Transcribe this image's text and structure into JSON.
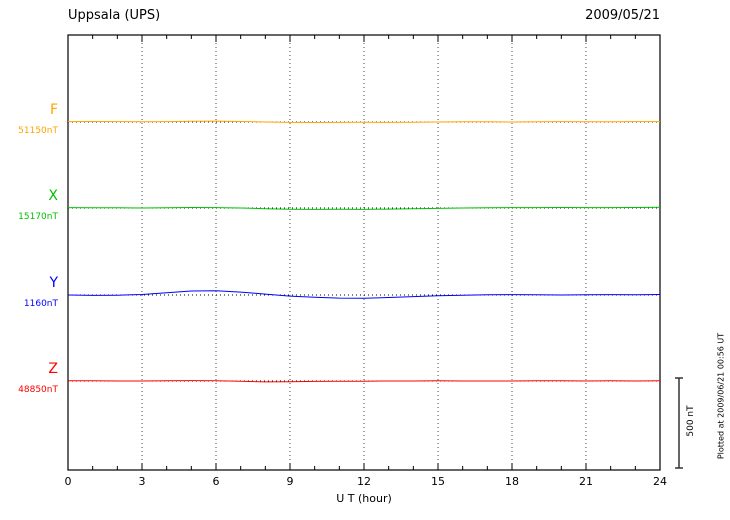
{
  "header": {
    "station": "Uppsala (UPS)",
    "date": "2009/05/21"
  },
  "axis": {
    "xlabel": "U T (hour)",
    "ticks": [
      "0",
      "3",
      "6",
      "9",
      "12",
      "15",
      "18",
      "21",
      "24"
    ]
  },
  "scale_bar": {
    "label": "500 nT",
    "nt": 500
  },
  "footer_note": "Plotted at 2009/06/21 00:56 UT",
  "channels": [
    {
      "label": "F",
      "value_label": "51150nT",
      "color": "#FFA500"
    },
    {
      "label": "X",
      "value_label": "15170nT",
      "color": "#00C000"
    },
    {
      "label": "Y",
      "value_label": "1160nT",
      "color": "#0000FF"
    },
    {
      "label": "Z",
      "value_label": "48850nT",
      "color": "#FF0000"
    }
  ],
  "chart_data": {
    "type": "line",
    "title": "Uppsala (UPS) magnetogram 2009/05/21",
    "xlabel": "U T (hour)",
    "xlim": [
      0,
      24
    ],
    "x_major_ticks": [
      0,
      3,
      6,
      9,
      12,
      15,
      18,
      21,
      24
    ],
    "x_hours": [
      0,
      1,
      2,
      3,
      4,
      5,
      6,
      7,
      8,
      9,
      10,
      11,
      12,
      13,
      14,
      15,
      16,
      17,
      18,
      19,
      20,
      21,
      22,
      23,
      24
    ],
    "grid": "dotted vertical gridlines every 3 h; dotted horizontal baseline per channel",
    "scale_bar_nt": 500,
    "series": [
      {
        "name": "F",
        "baseline": 51150,
        "color": "#FFA500",
        "values": [
          51152,
          51153,
          51152,
          51151,
          51152,
          51154,
          51155,
          51153,
          51150,
          51148,
          51147,
          51148,
          51149,
          51148,
          51149,
          51150,
          51151,
          51151,
          51150,
          51151,
          51152,
          51151,
          51151,
          51152,
          51152
        ]
      },
      {
        "name": "X",
        "baseline": 15170,
        "color": "#00C000",
        "values": [
          15172,
          15171,
          15171,
          15170,
          15171,
          15173,
          15172,
          15170,
          15166,
          15163,
          15162,
          15163,
          15162,
          15164,
          15166,
          15168,
          15170,
          15171,
          15172,
          15172,
          15173,
          15172,
          15172,
          15173,
          15174
        ]
      },
      {
        "name": "Y",
        "baseline": 1160,
        "color": "#0000FF",
        "values": [
          1160,
          1158,
          1159,
          1163,
          1172,
          1182,
          1184,
          1176,
          1165,
          1154,
          1147,
          1143,
          1142,
          1146,
          1151,
          1156,
          1159,
          1161,
          1162,
          1161,
          1160,
          1161,
          1162,
          1161,
          1163
        ]
      },
      {
        "name": "Z",
        "baseline": 48850,
        "color": "#FF0000",
        "values": [
          48851,
          48851,
          48850,
          48850,
          48851,
          48852,
          48851,
          48849,
          48845,
          48846,
          48848,
          48849,
          48849,
          48850,
          48850,
          48851,
          48850,
          48850,
          48850,
          48851,
          48851,
          48850,
          48851,
          48850,
          48851
        ]
      }
    ]
  }
}
